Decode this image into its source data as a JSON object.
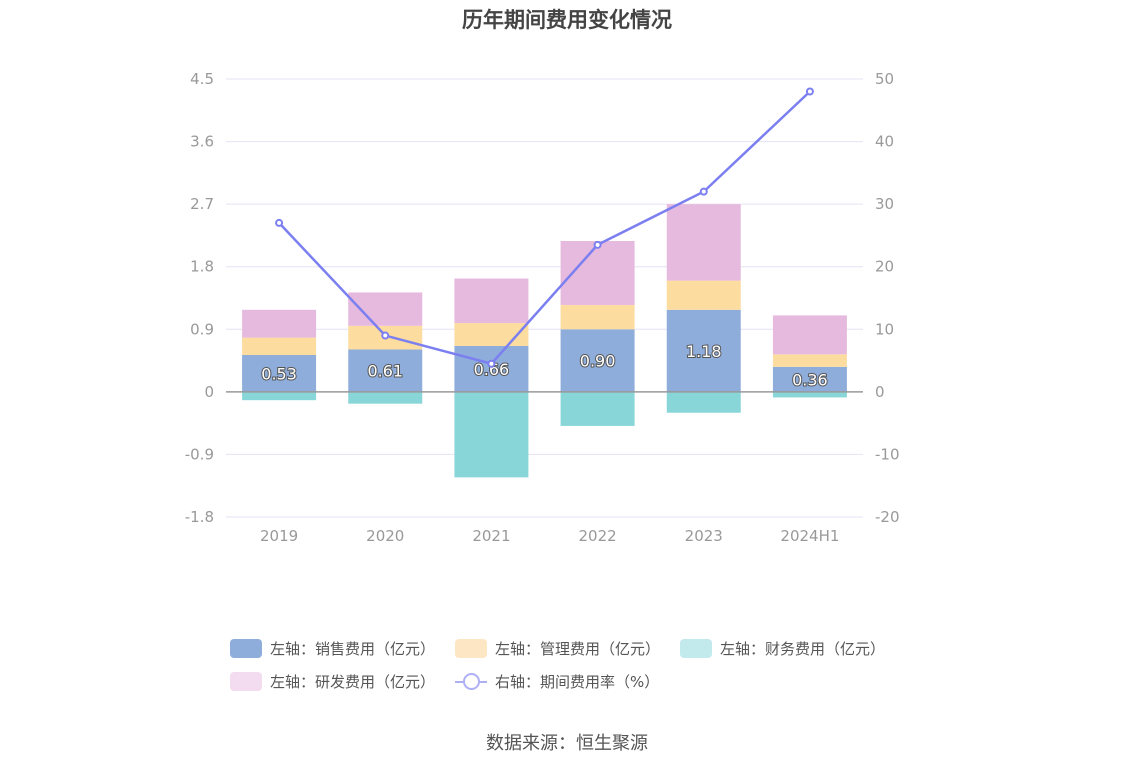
{
  "chart_data": {
    "type": "bar",
    "title": "历年期间费用变化情况",
    "categories": [
      "2019",
      "2020",
      "2021",
      "2022",
      "2023",
      "2024H1"
    ],
    "left_axis": {
      "ticks": [
        "4.5",
        "3.6",
        "2.7",
        "1.8",
        "0.9",
        "0",
        "-0.9",
        "-1.8"
      ],
      "ylim": [
        -1.8,
        4.5
      ]
    },
    "right_axis": {
      "ticks": [
        "50",
        "40",
        "30",
        "20",
        "10",
        "0",
        "-10",
        "-20"
      ],
      "ylim": [
        -20,
        50
      ]
    },
    "series": [
      {
        "name": "左轴：销售费用（亿元）",
        "axis": "left",
        "type": "bar",
        "color": "#8eadda",
        "values": [
          0.53,
          0.61,
          0.66,
          0.9,
          1.18,
          0.36
        ],
        "labels": [
          "0.53",
          "0.61",
          "0.66",
          "0.90",
          "1.18",
          "0.36"
        ]
      },
      {
        "name": "左轴：管理费用（亿元）",
        "axis": "left",
        "type": "bar",
        "color": "#fddca0",
        "values": [
          0.25,
          0.34,
          0.33,
          0.35,
          0.42,
          0.18
        ]
      },
      {
        "name": "左轴：财务费用（亿元）",
        "axis": "left",
        "type": "bar",
        "color": "#89d6d9",
        "values": [
          -0.12,
          -0.17,
          -1.23,
          -0.49,
          -0.3,
          -0.08
        ]
      },
      {
        "name": "左轴：研发费用（亿元）",
        "axis": "left",
        "type": "bar",
        "color": "#e6bade",
        "values": [
          0.4,
          0.48,
          0.64,
          0.92,
          1.1,
          0.56
        ]
      },
      {
        "name": "右轴：期间费用率（%）",
        "axis": "right",
        "type": "line",
        "color": "#7b7ff0",
        "values": [
          27.0,
          9.0,
          4.5,
          23.5,
          32.0,
          48.0
        ]
      }
    ]
  },
  "legend": {
    "items": [
      {
        "label": "左轴：销售费用（亿元）",
        "color": "#8eadda",
        "kind": "bar"
      },
      {
        "label": "左轴：管理费用（亿元）",
        "color": "#fde6c3",
        "kind": "bar"
      },
      {
        "label": "左轴：财务费用（亿元）",
        "color": "#c2e9eb",
        "kind": "bar"
      },
      {
        "label": "左轴：研发费用（亿元）",
        "color": "#f3dcef",
        "kind": "bar"
      },
      {
        "label": "右轴：期间费用率（%）",
        "color": "#aeb0f5",
        "kind": "line"
      }
    ]
  },
  "source": "数据来源：恒生聚源"
}
